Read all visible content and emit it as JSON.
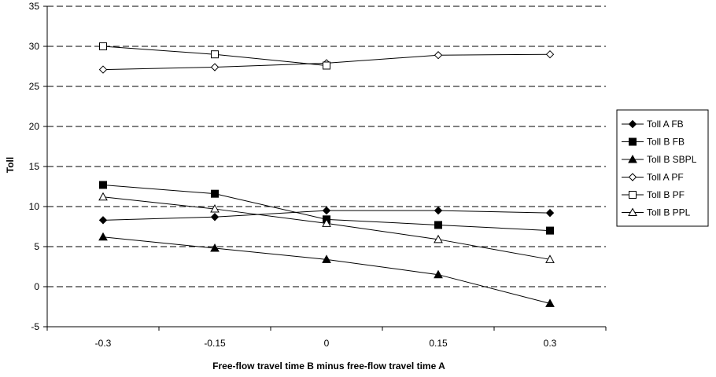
{
  "chart_data": {
    "type": "line",
    "title": "",
    "xlabel": "Free-flow travel time B minus free-flow travel time A",
    "ylabel": "Toll",
    "categories": [
      "-0.3",
      "-0.15",
      "0",
      "0.15",
      "0.3"
    ],
    "ylim": [
      -5,
      35
    ],
    "yticks": [
      "35",
      "30",
      "25",
      "20",
      "15",
      "10",
      "5",
      "0",
      "-5"
    ],
    "grid": "horizontal dashed",
    "legend_position": "right",
    "series": [
      {
        "name": "Toll A FB",
        "marker": "filled-diamond",
        "values": [
          8.3,
          8.7,
          9.5,
          9.5,
          9.2
        ]
      },
      {
        "name": "Toll B FB",
        "marker": "filled-square",
        "values": [
          12.7,
          11.6,
          8.4,
          7.7,
          7.0
        ]
      },
      {
        "name": "Toll B SBPL",
        "marker": "filled-triangle",
        "values": [
          6.2,
          4.8,
          3.4,
          1.5,
          -2.1
        ]
      },
      {
        "name": "Toll A PF",
        "marker": "open-diamond",
        "values": [
          27.1,
          27.4,
          27.9,
          28.9,
          29.0
        ]
      },
      {
        "name": "Toll B PF",
        "marker": "open-square",
        "values": [
          30.0,
          29.0,
          27.6,
          null,
          null
        ]
      },
      {
        "name": "Toll B PPL",
        "marker": "open-triangle",
        "values": [
          11.2,
          9.7,
          7.9,
          5.9,
          3.4
        ]
      }
    ]
  }
}
